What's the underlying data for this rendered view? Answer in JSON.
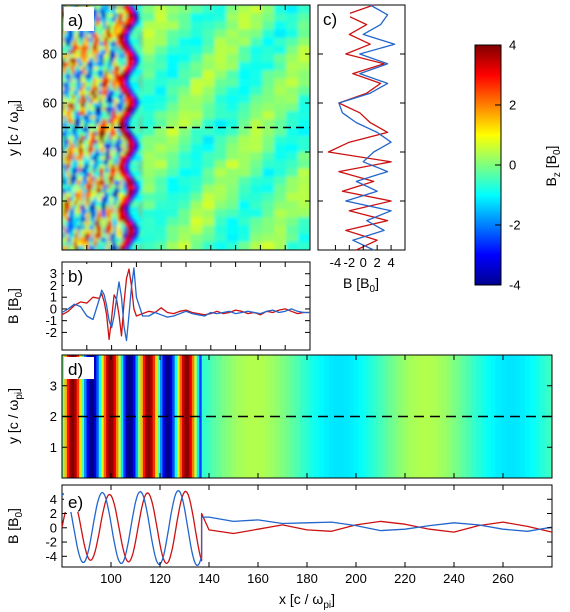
{
  "chart_data": [
    {
      "panel": "a)",
      "type": "heatmap",
      "ylabel": "y [c / ω",
      "ylabel_sub": "pi",
      "ylabel_end": "]",
      "xlim": [
        80,
        280
      ],
      "ylim": [
        0,
        100
      ],
      "yticks": [
        20,
        40,
        60,
        80
      ],
      "front_x": 137,
      "cut_y": 50
    },
    {
      "panel": "b)",
      "type": "line",
      "ylabel": "B [B",
      "ylabel_sub": "0",
      "ylabel_end": "]",
      "xlim": [
        80,
        280
      ],
      "ylim": [
        -3.5,
        4.0
      ],
      "yticks": [
        -2,
        -1,
        0,
        1,
        2,
        3
      ],
      "series": [
        {
          "color": "#cc1111",
          "x": [
            80,
            85,
            90,
            95,
            100,
            105,
            110,
            112,
            114,
            116,
            118,
            120,
            122,
            124,
            126,
            128,
            130,
            132,
            134,
            136,
            138,
            140,
            145,
            150,
            155,
            160,
            165,
            170,
            175,
            180,
            185,
            190,
            195,
            200,
            205,
            210,
            215,
            220,
            225,
            230,
            235,
            240,
            245,
            250,
            255,
            260,
            265,
            270,
            275,
            280
          ],
          "y": [
            -0.5,
            -0.2,
            0.3,
            0.6,
            0.5,
            1.0,
            0.9,
            1.3,
            0.6,
            -0.5,
            -2.6,
            -0.8,
            1.2,
            0.8,
            -0.5,
            -2.3,
            0.5,
            2.6,
            3.4,
            2.0,
            0.0,
            -0.6,
            -0.4,
            -0.2,
            -0.3,
            0.1,
            -0.3,
            -0.4,
            -0.2,
            -0.1,
            -0.3,
            -0.4,
            -0.5,
            -0.4,
            -0.2,
            -0.4,
            -0.3,
            -0.1,
            -0.2,
            -0.4,
            -0.3,
            -0.5,
            -0.2,
            -0.3,
            -0.1,
            0.0,
            -0.2,
            -0.4,
            -0.3,
            -0.3
          ]
        },
        {
          "color": "#2266cc",
          "x": [
            80,
            85,
            90,
            95,
            100,
            105,
            110,
            112,
            114,
            116,
            118,
            120,
            122,
            124,
            126,
            128,
            130,
            132,
            134,
            136,
            138,
            140,
            145,
            150,
            155,
            160,
            165,
            170,
            175,
            180,
            185,
            190,
            195,
            200,
            205,
            210,
            215,
            220,
            225,
            230,
            235,
            240,
            245,
            250,
            255,
            260,
            265,
            270,
            275,
            280
          ],
          "y": [
            -0.3,
            0.0,
            0.4,
            0.2,
            -0.6,
            -0.9,
            0.8,
            1.6,
            1.2,
            0.3,
            -1.0,
            -1.6,
            -0.6,
            0.9,
            2.3,
            1.0,
            -1.5,
            -2.7,
            -0.5,
            1.8,
            3.5,
            1.0,
            -0.6,
            -0.6,
            -0.3,
            -0.5,
            -0.7,
            -0.6,
            -0.4,
            -0.2,
            -0.4,
            -0.5,
            -0.6,
            -0.3,
            -0.4,
            -0.3,
            -0.2,
            -0.4,
            -0.3,
            -0.2,
            -0.3,
            -0.4,
            -0.2,
            -0.1,
            -0.3,
            -0.2,
            0.0,
            -0.2,
            -0.3,
            -0.3
          ]
        }
      ]
    },
    {
      "panel": "c)",
      "type": "line",
      "xlabel": "B [B",
      "xlabel_sub": "0",
      "xlabel_end": "]",
      "xlim": [
        -6.5,
        6.0
      ],
      "ylim": [
        0,
        100
      ],
      "xticks": [
        -4,
        -2,
        0,
        2,
        4
      ],
      "series": [
        {
          "color": "#cc1111",
          "y": [
            0,
            4,
            8,
            12,
            16,
            20,
            24,
            28,
            32,
            36,
            40,
            44,
            48,
            52,
            56,
            60,
            64,
            68,
            72,
            76,
            80,
            84,
            88,
            92,
            96,
            100
          ],
          "x": [
            -1,
            2.0,
            -2.5,
            3.5,
            -2,
            4.0,
            -3,
            1.5,
            -3.5,
            4.0,
            -5,
            -2,
            3.5,
            1,
            -0.5,
            -3.5,
            0.5,
            2.5,
            -1.5,
            3.0,
            -2.5,
            1.0,
            -2.0,
            0.5,
            -2.5,
            1.5
          ]
        },
        {
          "color": "#2266cc",
          "y": [
            0,
            4,
            8,
            12,
            16,
            20,
            24,
            28,
            32,
            36,
            40,
            44,
            48,
            52,
            56,
            60,
            64,
            68,
            72,
            76,
            80,
            84,
            88,
            92,
            96,
            100
          ],
          "x": [
            1.5,
            -1.5,
            3.0,
            0.5,
            4.0,
            -2.5,
            2.0,
            -1.0,
            3.5,
            0.0,
            1.5,
            4.0,
            2.0,
            -1.0,
            -3.0,
            -3.5,
            1.0,
            3.5,
            -0.5,
            3.5,
            -0.5,
            4.5,
            0.0,
            2.5,
            3.5,
            1.0
          ]
        }
      ]
    },
    {
      "panel": "d)",
      "type": "heatmap",
      "ylabel": "y [c / ω",
      "ylabel_sub": "pi",
      "ylabel_end": "]",
      "xlim": [
        80,
        280
      ],
      "ylim": [
        0,
        4
      ],
      "yticks": [
        1,
        2,
        3
      ],
      "stripe_end_x": 137,
      "cut_y": 2
    },
    {
      "panel": "e)",
      "type": "line",
      "ylabel": "B [B",
      "ylabel_sub": "0",
      "ylabel_end": "]",
      "xlabel": "x [c / ω",
      "xlabel_sub": "pi",
      "xlabel_end": "]",
      "xlim": [
        80,
        280
      ],
      "ylim": [
        -5.5,
        6.0
      ],
      "yticks": [
        -4,
        -2,
        0,
        2,
        4
      ],
      "xticks": [
        100,
        120,
        140,
        160,
        180,
        200,
        220,
        240,
        260
      ],
      "series": [
        {
          "color": "#cc1111",
          "wave": {
            "k": 0.405,
            "phase": 0.0,
            "amp_start": 4.4,
            "amp_end": 5.2,
            "end_x": 137
          },
          "tail": {
            "x": [
              137,
              140,
              150,
              160,
              170,
              180,
              190,
              200,
              210,
              220,
              230,
              240,
              250,
              260,
              270,
              280
            ],
            "y": [
              2.0,
              -0.3,
              -0.8,
              -0.2,
              0.4,
              -0.3,
              -0.5,
              0.4,
              0.9,
              0.5,
              -0.2,
              -0.6,
              0.3,
              0.8,
              0.2,
              -0.6
            ]
          }
        },
        {
          "color": "#2266cc",
          "wave": {
            "k": 0.405,
            "phase": 1.2,
            "amp_start": 4.8,
            "amp_end": 5.3,
            "end_x": 137
          },
          "tail": {
            "x": [
              137,
              140,
              150,
              160,
              170,
              180,
              190,
              200,
              210,
              220,
              230,
              240,
              250,
              260,
              270,
              280
            ],
            "y": [
              1.5,
              1.5,
              0.9,
              1.1,
              0.6,
              0.7,
              0.8,
              0.3,
              -0.4,
              -0.2,
              0.3,
              0.7,
              0.4,
              -0.2,
              -0.5,
              0.1
            ]
          }
        }
      ]
    },
    {
      "type": "colorbar",
      "label": "B",
      "label_sub": "z",
      "label_mid": " [B",
      "label_sub2": "0",
      "label_end": "]",
      "range": [
        -4,
        4
      ],
      "ticks": [
        -4,
        -2,
        0,
        2,
        4
      ]
    }
  ]
}
